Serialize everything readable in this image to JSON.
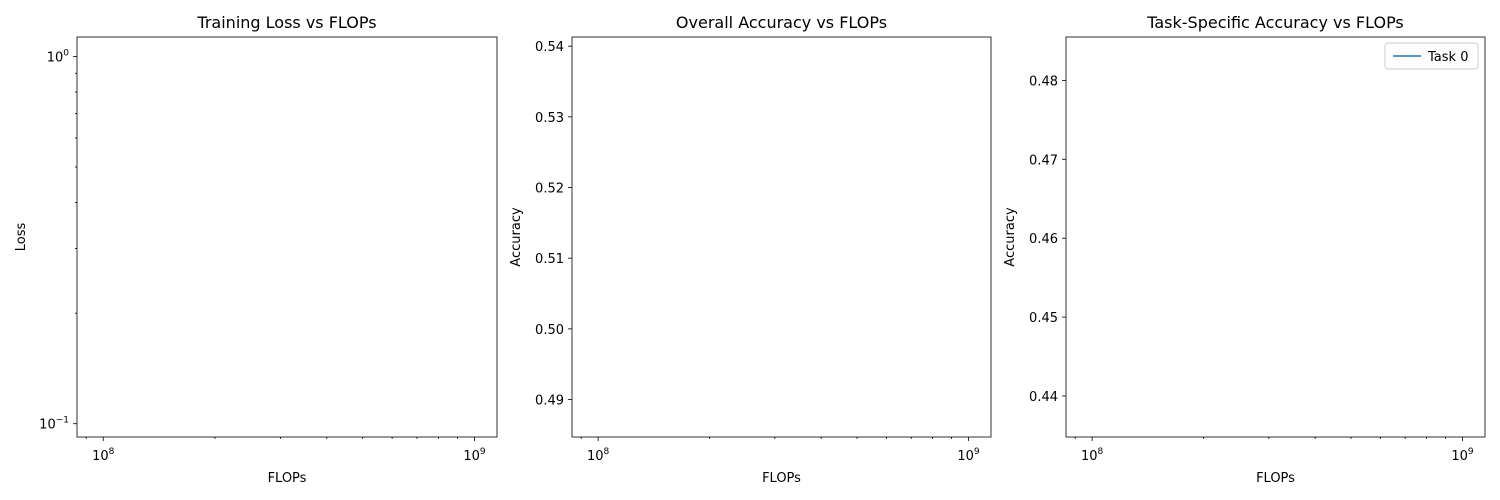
{
  "chart_data": [
    {
      "type": "line",
      "title": "Training Loss vs FLOPs",
      "xlabel": "FLOPs",
      "ylabel": "Loss",
      "xscale": "log",
      "yscale": "log",
      "xlim": [
        85000000.0,
        1150000000.0
      ],
      "ylim": [
        0.092,
        1.13
      ],
      "xtick_labels": [
        {
          "value": 100000000.0,
          "base": "10",
          "exp": "8"
        },
        {
          "value": 1000000000.0,
          "base": "10",
          "exp": "9"
        }
      ],
      "ytick_labels": [
        {
          "value": 1,
          "base": "10",
          "exp": "0"
        },
        {
          "value": 0.1,
          "base": "10",
          "exp": "−1"
        }
      ],
      "series": [],
      "legend": null,
      "grid": false
    },
    {
      "type": "line",
      "title": "Overall Accuracy vs FLOPs",
      "xlabel": "FLOPs",
      "ylabel": "Accuracy",
      "xscale": "log",
      "yscale": "linear",
      "xlim": [
        85000000.0,
        1150000000.0
      ],
      "ylim": [
        0.4847,
        0.5413
      ],
      "xtick_labels": [
        {
          "value": 100000000.0,
          "base": "10",
          "exp": "8"
        },
        {
          "value": 1000000000.0,
          "base": "10",
          "exp": "9"
        }
      ],
      "yticks": [
        0.49,
        0.5,
        0.51,
        0.52,
        0.53,
        0.54
      ],
      "ytick_text": [
        "0.49",
        "0.50",
        "0.51",
        "0.52",
        "0.53",
        "0.54"
      ],
      "series": [],
      "legend": null,
      "grid": false
    },
    {
      "type": "line",
      "title": "Task-Specific Accuracy vs FLOPs",
      "xlabel": "FLOPs",
      "ylabel": "Accuracy",
      "xscale": "log",
      "yscale": "linear",
      "xlim": [
        85000000.0,
        1150000000.0
      ],
      "ylim": [
        0.4348,
        0.4855
      ],
      "xtick_labels": [
        {
          "value": 100000000.0,
          "base": "10",
          "exp": "8"
        },
        {
          "value": 1000000000.0,
          "base": "10",
          "exp": "9"
        }
      ],
      "yticks": [
        0.44,
        0.45,
        0.46,
        0.47,
        0.48
      ],
      "ytick_text": [
        "0.44",
        "0.45",
        "0.46",
        "0.47",
        "0.48"
      ],
      "series": [
        {
          "name": "Task 0",
          "color": "#1f77b4",
          "x": [],
          "y": []
        }
      ],
      "legend": "upper right",
      "grid": false
    }
  ]
}
